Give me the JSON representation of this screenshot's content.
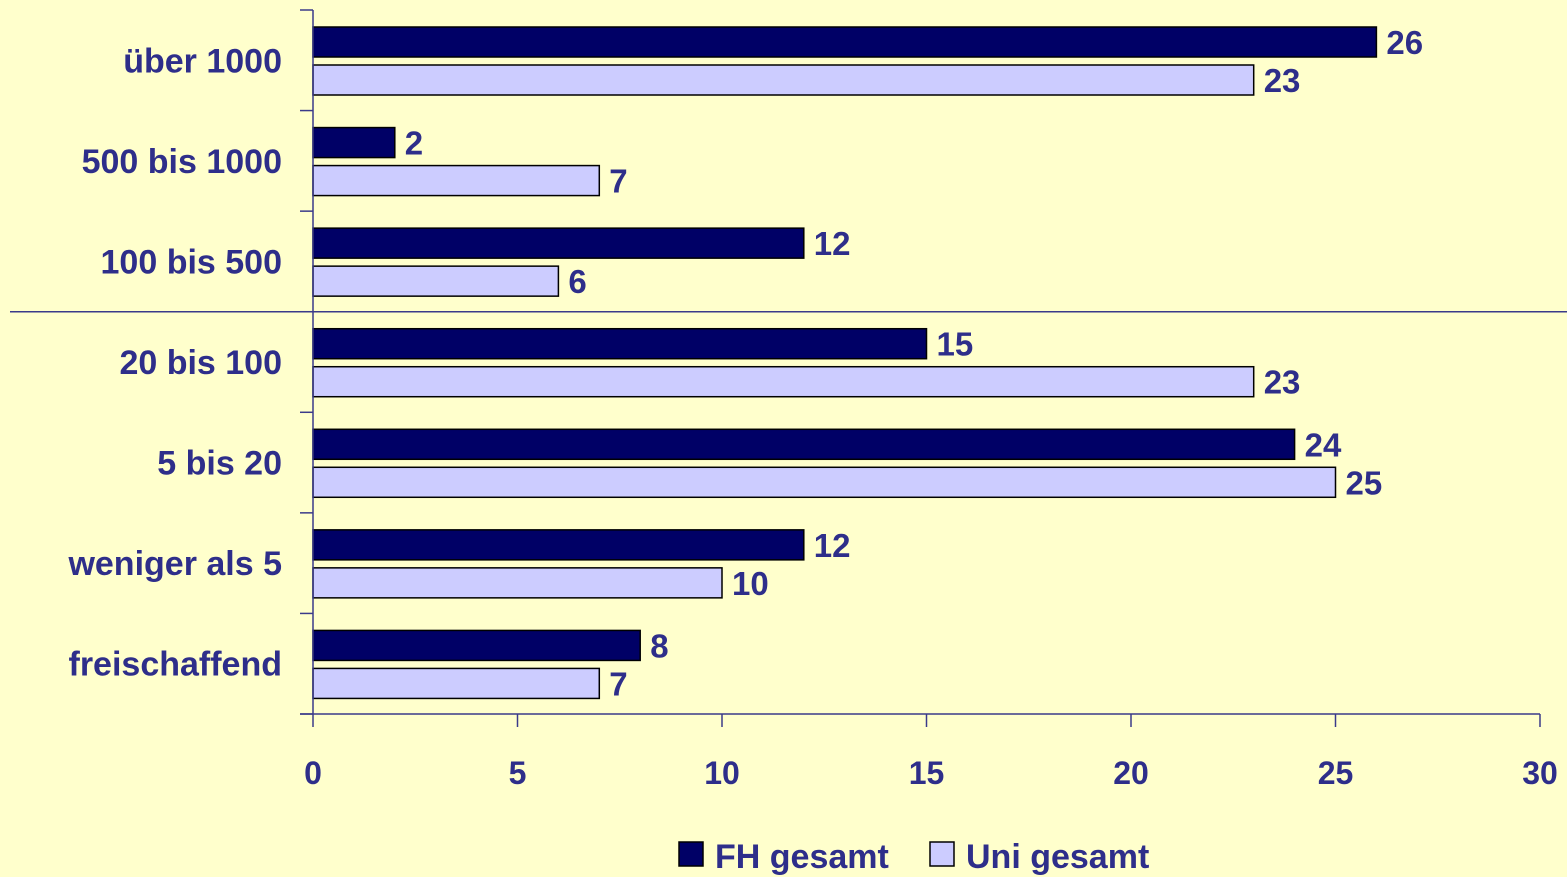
{
  "chart_data": {
    "type": "bar",
    "orientation": "horizontal",
    "categories": [
      "über 1000",
      "500 bis 1000",
      "100 bis 500",
      "20 bis 100",
      "5 bis 20",
      "weniger als 5",
      "freischaffend"
    ],
    "series": [
      {
        "name": "FH gesamt",
        "values": [
          26,
          2,
          12,
          15,
          24,
          12,
          8
        ],
        "data_labels": [
          "26",
          "2",
          "12",
          "15",
          "24",
          "12",
          "8"
        ],
        "color": "#000066"
      },
      {
        "name": "Uni gesamt",
        "values": [
          23,
          7,
          6,
          23,
          25,
          10,
          7
        ],
        "data_labels": [
          "23",
          "7",
          "6",
          "23",
          "25",
          "10",
          "7"
        ],
        "color": "#ccccff"
      }
    ],
    "xlim": [
      0,
      30
    ],
    "x_ticks": [
      "0",
      "5",
      "10",
      "15",
      "20",
      "25",
      "30"
    ],
    "grid": false,
    "separator_line": {
      "after_category": "100 bis 500"
    },
    "legend_position": "bottom",
    "text_color": "#2e2e8a",
    "axis_color": "#3a3a8a",
    "background": "#ffffcc",
    "title": "",
    "xlabel": "",
    "ylabel": ""
  }
}
